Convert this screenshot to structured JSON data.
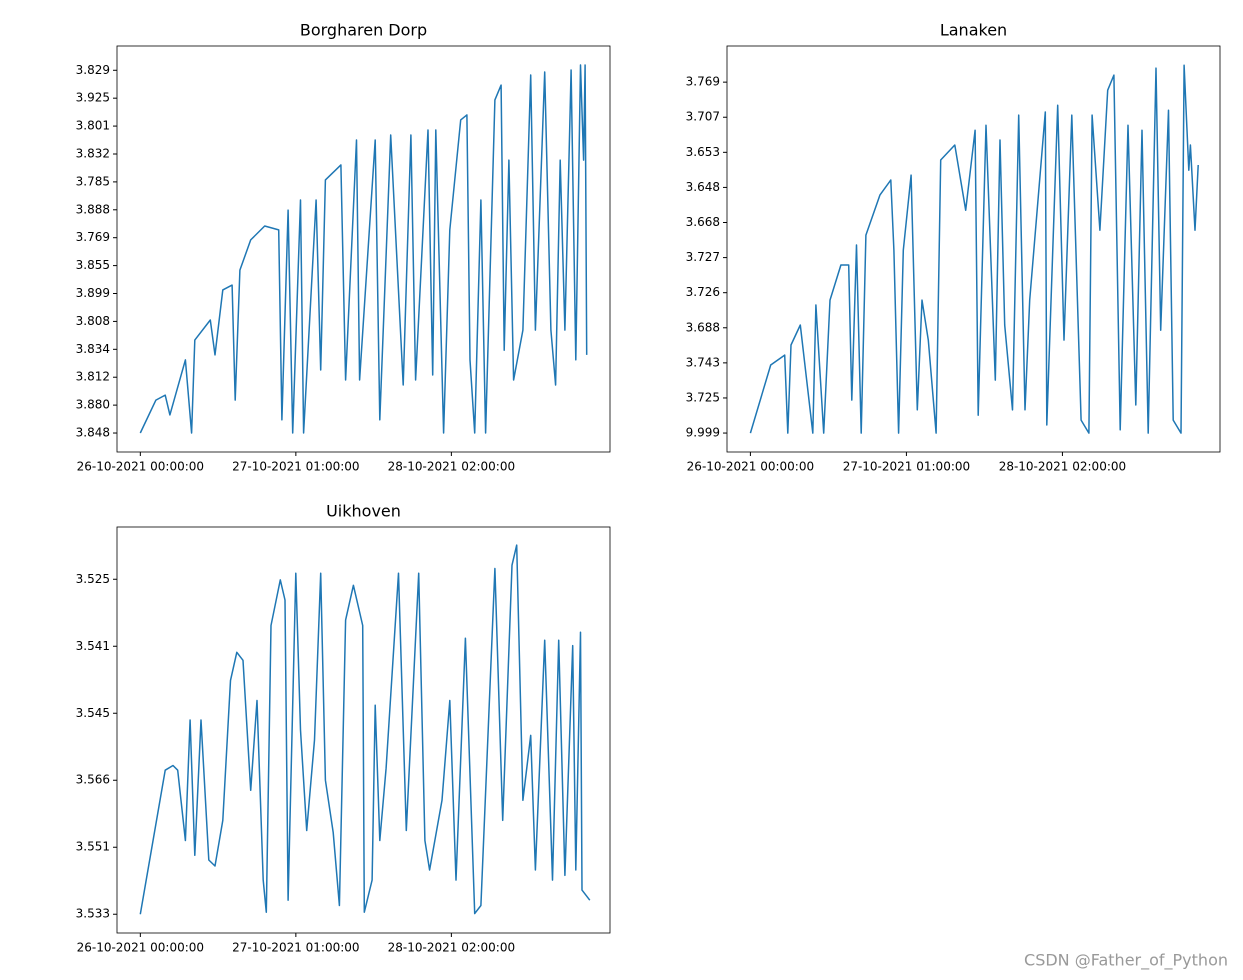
{
  "chart_data": [
    {
      "type": "line",
      "title": "Borgharen Dorp",
      "color": "#1f77b4",
      "xlim": [
        -0.15,
        3.02
      ],
      "xticks": [
        {
          "value": 0,
          "label": "26-10-2021 00:00:00"
        },
        {
          "value": 1,
          "label": "27-10-2021 01:00:00"
        },
        {
          "value": 2,
          "label": "28-10-2021 02:00:00"
        }
      ],
      "ylim": [
        -0.68,
        13.87
      ],
      "yticks": [
        {
          "value": 0,
          "label": "3.848"
        },
        {
          "value": 1,
          "label": "3.880"
        },
        {
          "value": 2,
          "label": "3.812"
        },
        {
          "value": 3,
          "label": "3.834"
        },
        {
          "value": 4,
          "label": "3.808"
        },
        {
          "value": 5,
          "label": "3.899"
        },
        {
          "value": 6,
          "label": "3.855"
        },
        {
          "value": 7,
          "label": "3.769"
        },
        {
          "value": 8,
          "label": "3.888"
        },
        {
          "value": 9,
          "label": "3.785"
        },
        {
          "value": 10,
          "label": "3.832"
        },
        {
          "value": 11,
          "label": "3.801"
        },
        {
          "value": 12,
          "label": "3.925"
        },
        {
          "value": 13,
          "label": "3.829"
        }
      ],
      "x": [
        0,
        0.1,
        0.16,
        0.19,
        0.29,
        0.33,
        0.35,
        0.45,
        0.48,
        0.53,
        0.59,
        0.61,
        0.64,
        0.71,
        0.8,
        0.89,
        0.91,
        0.95,
        0.98,
        1.03,
        1.05,
        1.13,
        1.16,
        1.19,
        1.29,
        1.32,
        1.39,
        1.41,
        1.51,
        1.54,
        1.61,
        1.69,
        1.74,
        1.77,
        1.85,
        1.88,
        1.9,
        1.95,
        1.99,
        2.06,
        2.1,
        2.12,
        2.15,
        2.19,
        2.22,
        2.28,
        2.32,
        2.34,
        2.37,
        2.4,
        2.46,
        2.51,
        2.54,
        2.6,
        2.64,
        2.67,
        2.7,
        2.73,
        2.77,
        2.8,
        2.83,
        2.85,
        2.86,
        2.87
      ],
      "values": [
        0,
        1.18,
        1.36,
        0.65,
        2.62,
        0,
        3.33,
        4.05,
        2.8,
        5.13,
        5.3,
        1.18,
        5.84,
        6.92,
        7.42,
        7.28,
        0.47,
        7.99,
        0,
        8.35,
        0,
        8.35,
        2.26,
        9.07,
        9.61,
        1.9,
        10.5,
        1.9,
        10.5,
        0.47,
        10.68,
        1.72,
        10.68,
        1.9,
        10.86,
        2.08,
        10.86,
        0,
        7.28,
        11.22,
        11.4,
        2.62,
        0,
        8.35,
        0,
        11.94,
        12.47,
        2.97,
        9.78,
        1.9,
        3.69,
        12.83,
        3.69,
        12.94,
        3.69,
        1.72,
        9.78,
        3.69,
        13.01,
        2.62,
        13.19,
        9.78,
        13.19,
        2.8
      ]
    },
    {
      "type": "line",
      "title": "Lanaken",
      "color": "#1f77b4",
      "xlim": [
        -0.15,
        3.01
      ],
      "xticks": [
        {
          "value": 0,
          "label": "26-10-2021 00:00:00"
        },
        {
          "value": 1,
          "label": "27-10-2021 01:00:00"
        },
        {
          "value": 2,
          "label": "28-10-2021 02:00:00"
        }
      ],
      "ylim": [
        -0.54,
        11.03
      ],
      "yticks": [
        {
          "value": 0,
          "label": "9.999"
        },
        {
          "value": 1,
          "label": "3.725"
        },
        {
          "value": 2,
          "label": "3.743"
        },
        {
          "value": 3,
          "label": "3.688"
        },
        {
          "value": 4,
          "label": "3.726"
        },
        {
          "value": 5,
          "label": "3.727"
        },
        {
          "value": 6,
          "label": "3.668"
        },
        {
          "value": 7,
          "label": "3.648"
        },
        {
          "value": 8,
          "label": "3.653"
        },
        {
          "value": 9,
          "label": "3.707"
        },
        {
          "value": 10,
          "label": "3.769"
        }
      ],
      "x": [
        0,
        0.13,
        0.22,
        0.24,
        0.26,
        0.32,
        0.4,
        0.42,
        0.47,
        0.51,
        0.58,
        0.63,
        0.65,
        0.68,
        0.71,
        0.74,
        0.83,
        0.9,
        0.92,
        0.95,
        0.98,
        1.03,
        1.07,
        1.1,
        1.14,
        1.19,
        1.22,
        1.31,
        1.38,
        1.44,
        1.46,
        1.51,
        1.57,
        1.6,
        1.63,
        1.68,
        1.72,
        1.76,
        1.79,
        1.89,
        1.9,
        1.97,
        2.01,
        2.06,
        2.12,
        2.17,
        2.19,
        2.24,
        2.29,
        2.33,
        2.37,
        2.42,
        2.47,
        2.51,
        2.55,
        2.6,
        2.63,
        2.68,
        2.71,
        2.76,
        2.78,
        2.81,
        2.82,
        2.85,
        2.87
      ],
      "values": [
        0,
        1.94,
        2.22,
        0,
        2.51,
        3.08,
        0,
        3.65,
        0,
        3.79,
        4.79,
        4.79,
        0.94,
        5.36,
        0,
        5.64,
        6.78,
        7.21,
        5.21,
        0,
        5.21,
        7.35,
        0.66,
        3.79,
        2.65,
        0,
        7.78,
        8.21,
        6.35,
        8.63,
        0.51,
        8.77,
        1.51,
        8.35,
        3.08,
        0.66,
        9.06,
        0.66,
        3.79,
        9.15,
        0.23,
        9.34,
        2.65,
        9.06,
        0.37,
        0,
        9.06,
        5.78,
        9.77,
        10.2,
        0.09,
        8.77,
        0.8,
        8.63,
        0,
        10.4,
        2.93,
        9.2,
        0.37,
        0,
        10.48,
        7.49,
        8.21,
        5.78,
        7.64
      ]
    },
    {
      "type": "line",
      "title": "Uikhoven",
      "color": "#1f77b4",
      "xlim": [
        -0.15,
        3.02
      ],
      "xticks": [
        {
          "value": 0,
          "label": "26-10-2021 00:00:00"
        },
        {
          "value": 1,
          "label": "27-10-2021 01:00:00"
        },
        {
          "value": 2,
          "label": "28-10-2021 02:00:00"
        }
      ],
      "ylim": [
        -0.28,
        5.78
      ],
      "yticks": [
        {
          "value": 0,
          "label": "3.533"
        },
        {
          "value": 1,
          "label": "3.551"
        },
        {
          "value": 2,
          "label": "3.566"
        },
        {
          "value": 3,
          "label": "3.545"
        },
        {
          "value": 4,
          "label": "3.541"
        },
        {
          "value": 5,
          "label": "3.525"
        }
      ],
      "x": [
        0,
        0.16,
        0.21,
        0.24,
        0.29,
        0.32,
        0.35,
        0.39,
        0.44,
        0.48,
        0.53,
        0.58,
        0.62,
        0.66,
        0.71,
        0.75,
        0.79,
        0.81,
        0.84,
        0.9,
        0.93,
        0.95,
        1.0,
        1.03,
        1.07,
        1.12,
        1.16,
        1.19,
        1.24,
        1.28,
        1.32,
        1.37,
        1.43,
        1.44,
        1.49,
        1.51,
        1.54,
        1.58,
        1.66,
        1.71,
        1.79,
        1.83,
        1.86,
        1.94,
        1.99,
        2.03,
        2.09,
        2.15,
        2.19,
        2.28,
        2.33,
        2.39,
        2.42,
        2.46,
        2.51,
        2.54,
        2.6,
        2.65,
        2.69,
        2.73,
        2.78,
        2.8,
        2.83,
        2.84,
        2.89
      ],
      "values": [
        0,
        2.15,
        2.22,
        2.15,
        1.1,
        2.9,
        0.88,
        2.9,
        0.81,
        0.72,
        1.4,
        3.49,
        3.91,
        3.79,
        1.85,
        3.19,
        0.51,
        0.03,
        4.31,
        4.99,
        4.69,
        0.21,
        5.09,
        2.75,
        1.25,
        2.6,
        5.09,
        2.0,
        1.22,
        0.13,
        4.39,
        4.91,
        4.31,
        0.03,
        0.51,
        3.12,
        1.1,
        2.18,
        5.09,
        1.25,
        5.09,
        1.1,
        0.66,
        1.7,
        3.19,
        0.51,
        4.12,
        0.01,
        0.13,
        5.16,
        1.4,
        5.21,
        5.51,
        1.7,
        2.67,
        0.66,
        4.09,
        0.51,
        4.09,
        0.58,
        4.01,
        0.66,
        4.21,
        0.36,
        0.21
      ]
    }
  ],
  "watermark": "CSDN @Father_of_Python"
}
